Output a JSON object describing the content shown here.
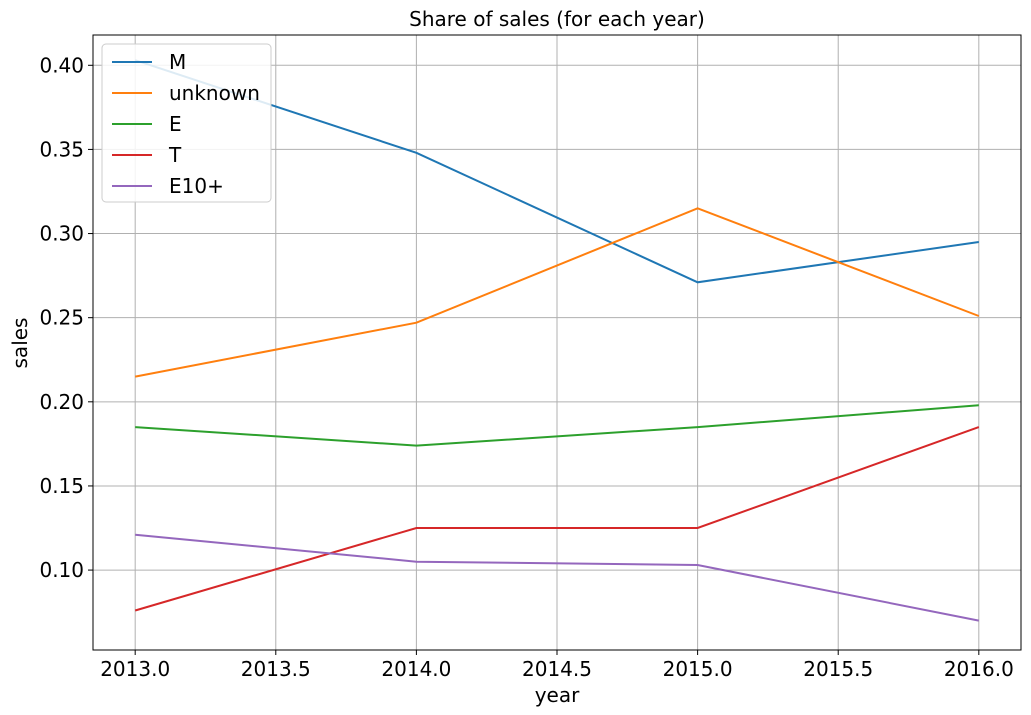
{
  "chart_data": {
    "type": "line",
    "title": "Share of sales (for each year)",
    "xlabel": "year",
    "ylabel": "sales",
    "x": [
      2013,
      2014,
      2015,
      2016
    ],
    "xlim": [
      2012.85,
      2016.15
    ],
    "ylim": [
      0.0525,
      0.418
    ],
    "xticks": [
      "2013.0",
      "2013.5",
      "2014.0",
      "2014.5",
      "2015.0",
      "2015.5",
      "2016.0"
    ],
    "yticks": [
      "0.10",
      "0.15",
      "0.20",
      "0.25",
      "0.30",
      "0.35",
      "0.40"
    ],
    "grid": true,
    "legend_position": "top-left",
    "series": [
      {
        "name": "M",
        "color": "#1f77b4",
        "values": [
          0.403,
          0.348,
          0.271,
          0.295
        ]
      },
      {
        "name": "unknown",
        "color": "#ff7f0e",
        "values": [
          0.215,
          0.247,
          0.315,
          0.251
        ]
      },
      {
        "name": "E",
        "color": "#2ca02c",
        "values": [
          0.185,
          0.174,
          0.185,
          0.198
        ]
      },
      {
        "name": "T",
        "color": "#d62728",
        "values": [
          0.076,
          0.125,
          0.125,
          0.185
        ]
      },
      {
        "name": "E10+",
        "color": "#9467bd",
        "values": [
          0.121,
          0.105,
          0.103,
          0.07
        ]
      }
    ]
  }
}
